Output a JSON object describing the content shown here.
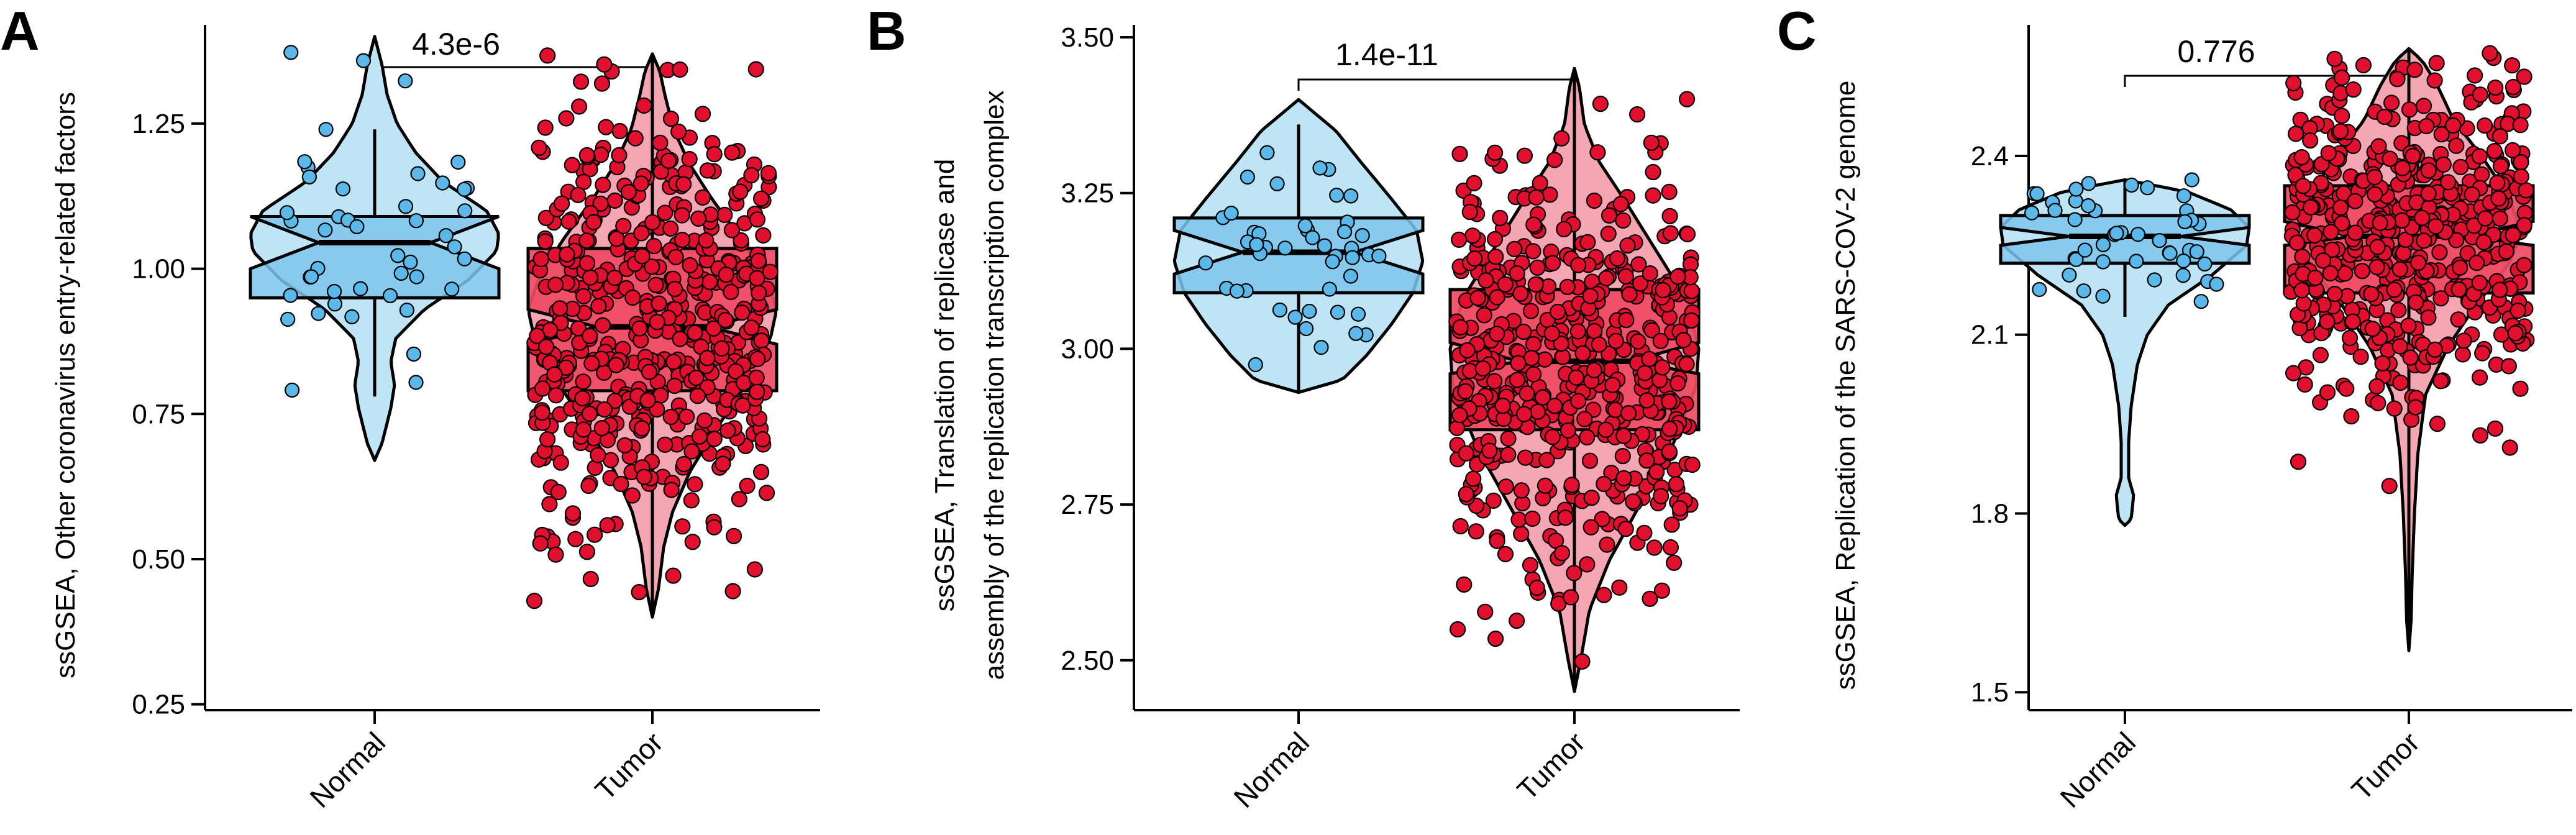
{
  "chart_data": [
    {
      "panel": "A",
      "type": "violin-box-jitter",
      "ylabel": "ssGSEA, Other coronavirus entry-related factors",
      "yticks": [
        0.25,
        0.5,
        0.75,
        1.0,
        1.25
      ],
      "ytick_labels": [
        "0.25",
        "0.50",
        "0.75",
        "1.00",
        "1.25"
      ],
      "ylim": [
        0.24,
        1.42
      ],
      "categories": [
        "Normal",
        "Tumor"
      ],
      "pvalue": "4.3e-6",
      "groups": [
        {
          "name": "Normal",
          "min": 0.67,
          "q1": 0.95,
          "median": 1.045,
          "q3": 1.09,
          "max": 1.4,
          "notch": [
            1.0,
            1.09
          ],
          "whisker": [
            0.78,
            1.24
          ],
          "n_points": 45
        },
        {
          "name": "Tumor",
          "min": 0.4,
          "q1": 0.79,
          "median": 0.9,
          "q3": 1.035,
          "max": 1.37,
          "notch": [
            0.87,
            0.93
          ],
          "whisker": [
            0.4,
            1.37
          ],
          "n_points": 520
        }
      ]
    },
    {
      "panel": "B",
      "type": "violin-box-jitter",
      "ylabel": [
        "ssGSEA, Translation of replicase and",
        "assembly of the replication transcription complex"
      ],
      "yticks": [
        2.5,
        2.75,
        3.0,
        3.25,
        3.5
      ],
      "ytick_labels": [
        "2.50",
        "2.75",
        "3.00",
        "3.25",
        "3.50"
      ],
      "ylim": [
        2.42,
        3.52
      ],
      "categories": [
        "Normal",
        "Tumor"
      ],
      "pvalue": "1.4e-11",
      "groups": [
        {
          "name": "Normal",
          "min": 2.93,
          "q1": 3.09,
          "median": 3.155,
          "q3": 3.21,
          "max": 3.4,
          "notch": [
            3.12,
            3.19
          ],
          "whisker": [
            2.93,
            3.36
          ],
          "n_points": 45
        },
        {
          "name": "Tumor",
          "min": 2.45,
          "q1": 2.87,
          "median": 2.98,
          "q3": 3.095,
          "max": 3.45,
          "notch": [
            2.96,
            3.01
          ],
          "whisker": [
            2.45,
            3.45
          ],
          "n_points": 520
        }
      ]
    },
    {
      "panel": "C",
      "type": "violin-box-jitter",
      "ylabel": "ssGSEA, Replication of the SARS-COV-2 genome",
      "yticks": [
        1.5,
        1.8,
        2.1,
        2.4
      ],
      "ytick_labels": [
        "1.5",
        "1.8",
        "2.1",
        "2.4"
      ],
      "ylim": [
        1.47,
        2.62
      ],
      "categories": [
        "Normal",
        "Tumor"
      ],
      "pvalue": "0.776",
      "groups": [
        {
          "name": "Normal",
          "min": 1.78,
          "q1": 2.22,
          "median": 2.265,
          "q3": 2.3,
          "max": 2.36,
          "notch": [
            2.25,
            2.28
          ],
          "whisker": [
            2.13,
            2.36
          ],
          "n_points": 45
        },
        {
          "name": "Tumor",
          "min": 1.57,
          "q1": 2.17,
          "median": 2.265,
          "q3": 2.35,
          "max": 2.58,
          "notch": [
            2.25,
            2.29
          ],
          "whisker": [
            1.57,
            2.58
          ],
          "n_points": 520
        }
      ]
    }
  ],
  "colors": {
    "normal_fill": "#bfe4f6",
    "normal_box": "#7cc6ec",
    "normal_point": "#5bb8e8",
    "tumor_fill": "#f4a6b2",
    "tumor_box": "#ef4a63",
    "tumor_point": "#e0102e",
    "outline": "#000000"
  }
}
